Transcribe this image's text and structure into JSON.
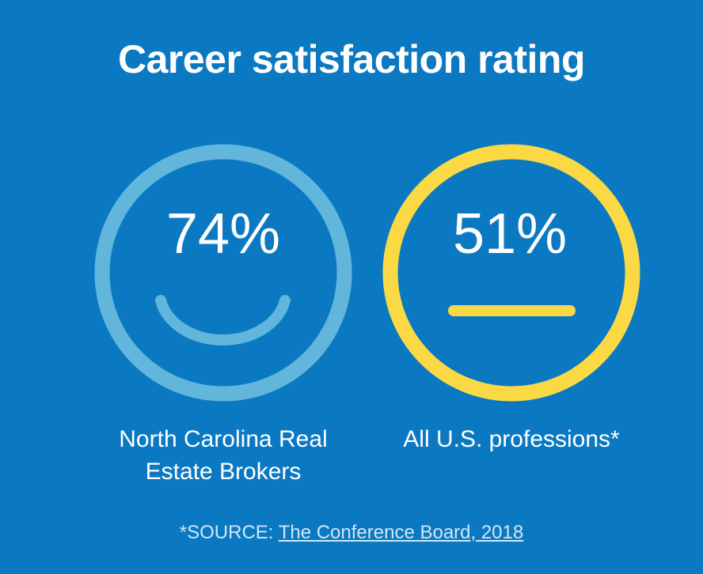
{
  "title": "Career satisfaction rating",
  "items": [
    {
      "value": "74%",
      "label": "North Carolina Real Estate Brokers"
    },
    {
      "value": "51%",
      "label": "All U.S. professions*"
    }
  ],
  "source": {
    "prefix": "*SOURCE:",
    "link": "The Conference Board, 2018"
  }
}
